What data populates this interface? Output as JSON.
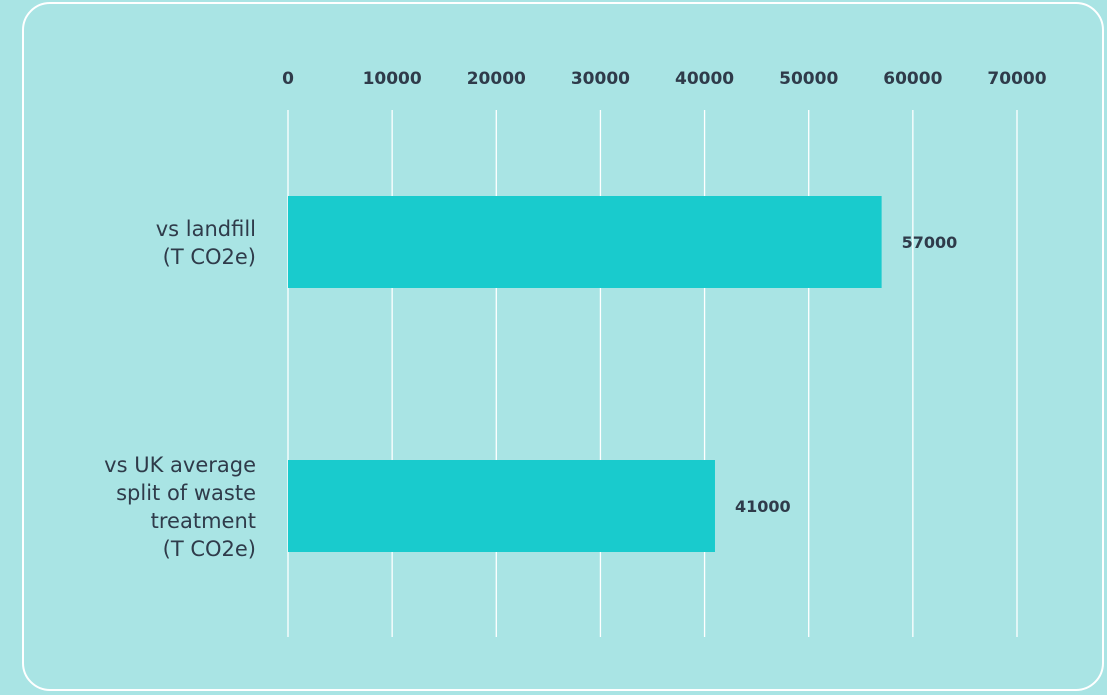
{
  "chart_data": {
    "type": "bar",
    "orientation": "horizontal",
    "categories": [
      [
        "vs landfill",
        "(T CO2e)"
      ],
      [
        "vs UK average",
        "split of waste",
        "treatment",
        "(T CO2e)"
      ]
    ],
    "values": [
      57000,
      41000
    ],
    "data_labels": [
      "57000",
      "41000"
    ],
    "xlim": [
      0,
      70000
    ],
    "x_ticks": [
      0,
      10000,
      20000,
      30000,
      40000,
      50000,
      60000,
      70000
    ],
    "x_tick_labels": [
      "0",
      "10000",
      "20000",
      "30000",
      "40000",
      "50000",
      "60000",
      "70000"
    ],
    "x_axis_position": "top",
    "grid": true,
    "legend": "none",
    "colors": {
      "background": "#a9e4e4",
      "bar": "#19cbcd",
      "grid": "#ffffff",
      "text": "#2f3b4a",
      "card_border": "#ffffff"
    }
  }
}
